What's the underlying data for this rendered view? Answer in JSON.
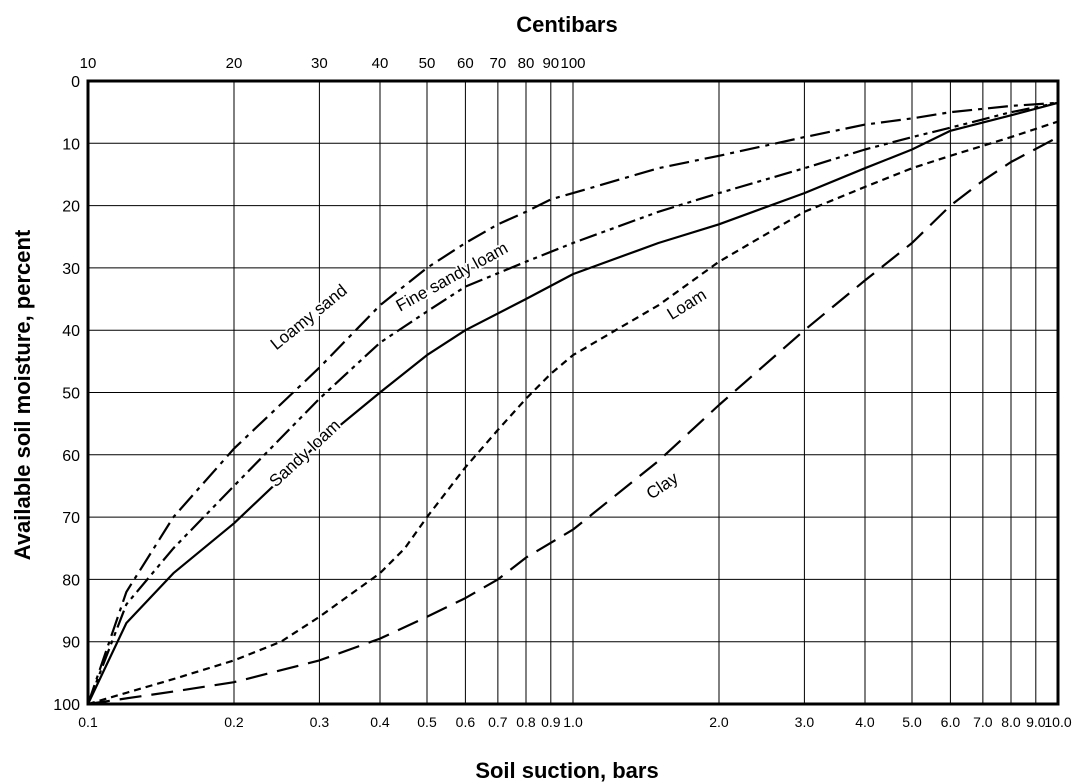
{
  "chart_data": {
    "type": "line",
    "title": "Centibars",
    "xlabel": "Soil suction, bars",
    "ylabel": "Available soil moisture, percent",
    "x_scale": "log",
    "xlim": [
      0.1,
      10.0
    ],
    "ylim": [
      100,
      0
    ],
    "y_inverted": true,
    "grid": true,
    "legend": "none",
    "x_tick_labels": [
      "0.1",
      "0.2",
      "0.3",
      "0.4",
      "0.5",
      "0.6",
      "0.7",
      "0.8",
      "0.9",
      "1.0",
      "2.0",
      "3.0",
      "4.0",
      "5.0",
      "6.0",
      "7.0",
      "8.0",
      "9.0",
      "10.0"
    ],
    "x_tick_values": [
      0.1,
      0.2,
      0.3,
      0.4,
      0.5,
      0.6,
      0.7,
      0.8,
      0.9,
      1.0,
      2.0,
      3.0,
      4.0,
      5.0,
      6.0,
      7.0,
      8.0,
      9.0,
      10.0
    ],
    "top_tick_labels": [
      "10",
      "20",
      "30",
      "40",
      "50",
      "60",
      "70",
      "80",
      "90",
      "100"
    ],
    "top_tick_values": [
      0.1,
      0.2,
      0.3,
      0.4,
      0.5,
      0.6,
      0.7,
      0.8,
      0.9,
      1.0
    ],
    "y_tick_labels": [
      "0",
      "10",
      "20",
      "30",
      "40",
      "50",
      "60",
      "70",
      "80",
      "90",
      "100"
    ],
    "y_tick_values": [
      0,
      10,
      20,
      30,
      40,
      50,
      60,
      70,
      80,
      90,
      100
    ],
    "series": [
      {
        "name": "Loamy sand",
        "dash": "long-dash-dot",
        "points": [
          [
            0.1,
            100
          ],
          [
            0.12,
            82
          ],
          [
            0.15,
            70
          ],
          [
            0.2,
            59
          ],
          [
            0.3,
            46
          ],
          [
            0.4,
            36
          ],
          [
            0.5,
            30
          ],
          [
            0.6,
            26
          ],
          [
            0.7,
            23
          ],
          [
            0.8,
            21
          ],
          [
            0.9,
            19
          ],
          [
            1.0,
            18
          ],
          [
            1.5,
            14
          ],
          [
            2.0,
            12
          ],
          [
            3.0,
            9
          ],
          [
            4.0,
            7
          ],
          [
            5.0,
            6
          ],
          [
            6.0,
            5
          ],
          [
            8.0,
            4
          ],
          [
            10.0,
            3.5
          ]
        ]
      },
      {
        "name": "Fine sandy loam",
        "dash": "long-dash-dot-dot",
        "points": [
          [
            0.1,
            100
          ],
          [
            0.12,
            84
          ],
          [
            0.15,
            75
          ],
          [
            0.2,
            65
          ],
          [
            0.3,
            51
          ],
          [
            0.4,
            42
          ],
          [
            0.5,
            37
          ],
          [
            0.6,
            33
          ],
          [
            0.8,
            29
          ],
          [
            1.0,
            26
          ],
          [
            1.5,
            21
          ],
          [
            2.0,
            18
          ],
          [
            3.0,
            14
          ],
          [
            4.0,
            11
          ],
          [
            5.0,
            9
          ],
          [
            6.0,
            7.5
          ],
          [
            8.0,
            5
          ],
          [
            10.0,
            3.5
          ]
        ]
      },
      {
        "name": "Sandy loam",
        "dash": "solid",
        "points": [
          [
            0.1,
            100
          ],
          [
            0.12,
            87
          ],
          [
            0.15,
            79
          ],
          [
            0.2,
            71
          ],
          [
            0.3,
            58
          ],
          [
            0.4,
            50
          ],
          [
            0.5,
            44
          ],
          [
            0.6,
            40
          ],
          [
            0.8,
            35
          ],
          [
            1.0,
            31
          ],
          [
            1.5,
            26
          ],
          [
            2.0,
            23
          ],
          [
            3.0,
            18
          ],
          [
            4.0,
            14
          ],
          [
            5.0,
            11
          ],
          [
            6.0,
            8
          ],
          [
            8.0,
            5.5
          ],
          [
            10.0,
            3.5
          ]
        ]
      },
      {
        "name": "Loam",
        "dash": "short-dash",
        "points": [
          [
            0.1,
            100
          ],
          [
            0.15,
            96
          ],
          [
            0.2,
            93
          ],
          [
            0.25,
            90
          ],
          [
            0.3,
            86
          ],
          [
            0.4,
            79
          ],
          [
            0.45,
            75
          ],
          [
            0.5,
            70
          ],
          [
            0.6,
            62
          ],
          [
            0.7,
            56
          ],
          [
            0.8,
            51
          ],
          [
            0.9,
            47
          ],
          [
            1.0,
            44
          ],
          [
            1.5,
            36
          ],
          [
            2.0,
            29
          ],
          [
            3.0,
            21
          ],
          [
            4.0,
            17
          ],
          [
            5.0,
            14
          ],
          [
            6.0,
            12
          ],
          [
            8.0,
            9
          ],
          [
            10.0,
            6.5
          ]
        ]
      },
      {
        "name": "Clay",
        "dash": "long-dash",
        "points": [
          [
            0.1,
            100
          ],
          [
            0.15,
            98
          ],
          [
            0.2,
            96.5
          ],
          [
            0.3,
            93
          ],
          [
            0.4,
            89.5
          ],
          [
            0.5,
            86
          ],
          [
            0.6,
            83
          ],
          [
            0.7,
            80
          ],
          [
            0.8,
            76.5
          ],
          [
            1.0,
            72
          ],
          [
            1.5,
            61
          ],
          [
            2.0,
            52
          ],
          [
            3.0,
            40
          ],
          [
            4.0,
            32
          ],
          [
            5.0,
            26
          ],
          [
            6.0,
            20
          ],
          [
            7.0,
            16
          ],
          [
            8.0,
            13
          ],
          [
            10.0,
            9
          ]
        ]
      }
    ],
    "labels": [
      {
        "text": "Loamy sand",
        "x": 0.29,
        "y": 38.6,
        "angle": -39
      },
      {
        "text": "Fine sandy loam",
        "x": 0.57,
        "y": 32.2,
        "angle": -29
      },
      {
        "text": "Sandy loam",
        "x": 0.285,
        "y": 60.4,
        "angle": -43
      },
      {
        "text": "Loam",
        "x": 1.74,
        "y": 36.6,
        "angle": -32
      },
      {
        "text": "Clay",
        "x": 1.55,
        "y": 65.7,
        "angle": -34
      }
    ]
  }
}
